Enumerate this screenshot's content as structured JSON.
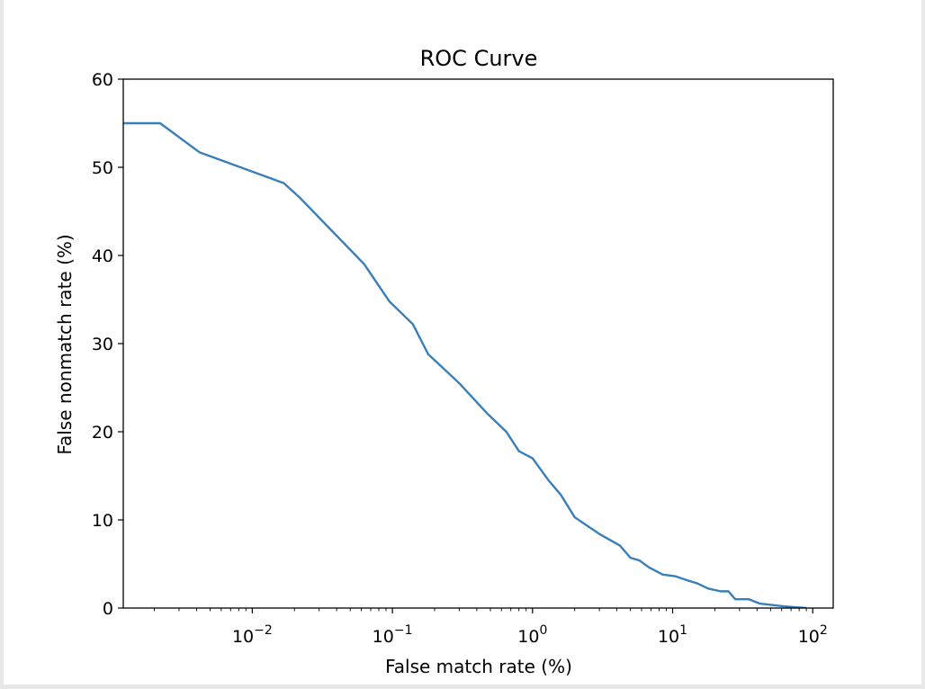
{
  "chart_data": {
    "type": "line",
    "title": "ROC Curve",
    "xlabel": "False match rate (%)",
    "ylabel": "False nonmatch rate (%)",
    "x_scale": "log",
    "xlim": [
      0.0012,
      140
    ],
    "ylim": [
      0,
      60
    ],
    "grid": false,
    "x_ticks": [
      {
        "value": 0.01,
        "base": "10",
        "exp": "−2"
      },
      {
        "value": 0.1,
        "base": "10",
        "exp": "−1"
      },
      {
        "value": 1,
        "base": "10",
        "exp": "0"
      },
      {
        "value": 10,
        "base": "10",
        "exp": "1"
      },
      {
        "value": 100,
        "base": "10",
        "exp": "2"
      }
    ],
    "y_ticks": [
      0,
      10,
      20,
      30,
      40,
      50,
      60
    ],
    "line_color": "#3a7fb8",
    "series": [
      {
        "x": [
          0.0012,
          0.0022,
          0.0042,
          0.0168,
          0.022,
          0.063,
          0.095,
          0.14,
          0.18,
          0.3,
          0.48,
          0.65,
          0.8,
          1.0,
          1.3,
          1.6,
          2.0,
          3.0,
          4.2,
          5.0,
          5.8,
          6.8,
          8.5,
          10.5,
          13,
          15,
          18,
          22,
          25,
          28,
          35,
          42,
          62,
          90
        ],
        "y": [
          55,
          55,
          51.7,
          48.2,
          46.5,
          39,
          34.8,
          32.2,
          28.8,
          25.5,
          22,
          20,
          17.8,
          17,
          14.5,
          12.8,
          10.3,
          8.4,
          7.1,
          5.7,
          5.4,
          4.6,
          3.8,
          3.6,
          3.1,
          2.8,
          2.2,
          1.9,
          1.9,
          1.0,
          1.0,
          0.5,
          0.2,
          0
        ]
      }
    ]
  }
}
